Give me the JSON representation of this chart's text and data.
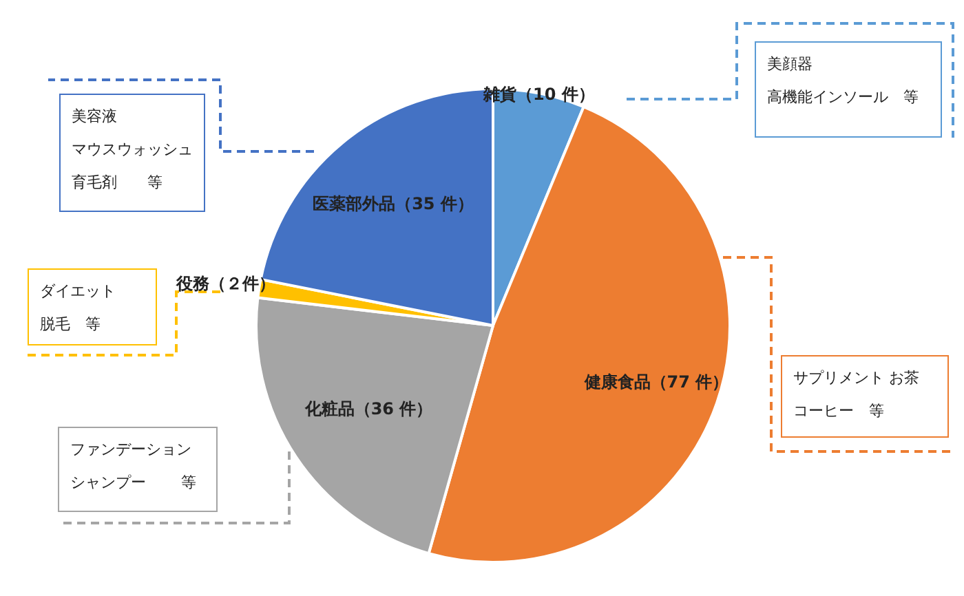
{
  "chart_data": {
    "type": "pie",
    "categories": [
      "雑貨",
      "健康食品",
      "化粧品",
      "役務",
      "医薬部外品"
    ],
    "values": [
      10,
      77,
      36,
      2,
      35
    ],
    "colors": [
      "#5b9bd5",
      "#ed7d31",
      "#a5a5a5",
      "#ffc000",
      "#4472c4"
    ],
    "value_labels": [
      "（10 件）",
      "（77 件）",
      "（36 件）",
      "（２件）",
      "（35 件）"
    ],
    "annotations": [
      "美顔器",
      "高機能インソール　等",
      "美容液",
      "マウスウォッシュ",
      "育毛剤　　等",
      "ダイエット",
      "脱毛　等",
      "サプリメント お茶",
      "コーヒー　等",
      "ファンデーション",
      "シャンプー　　 等"
    ]
  }
}
